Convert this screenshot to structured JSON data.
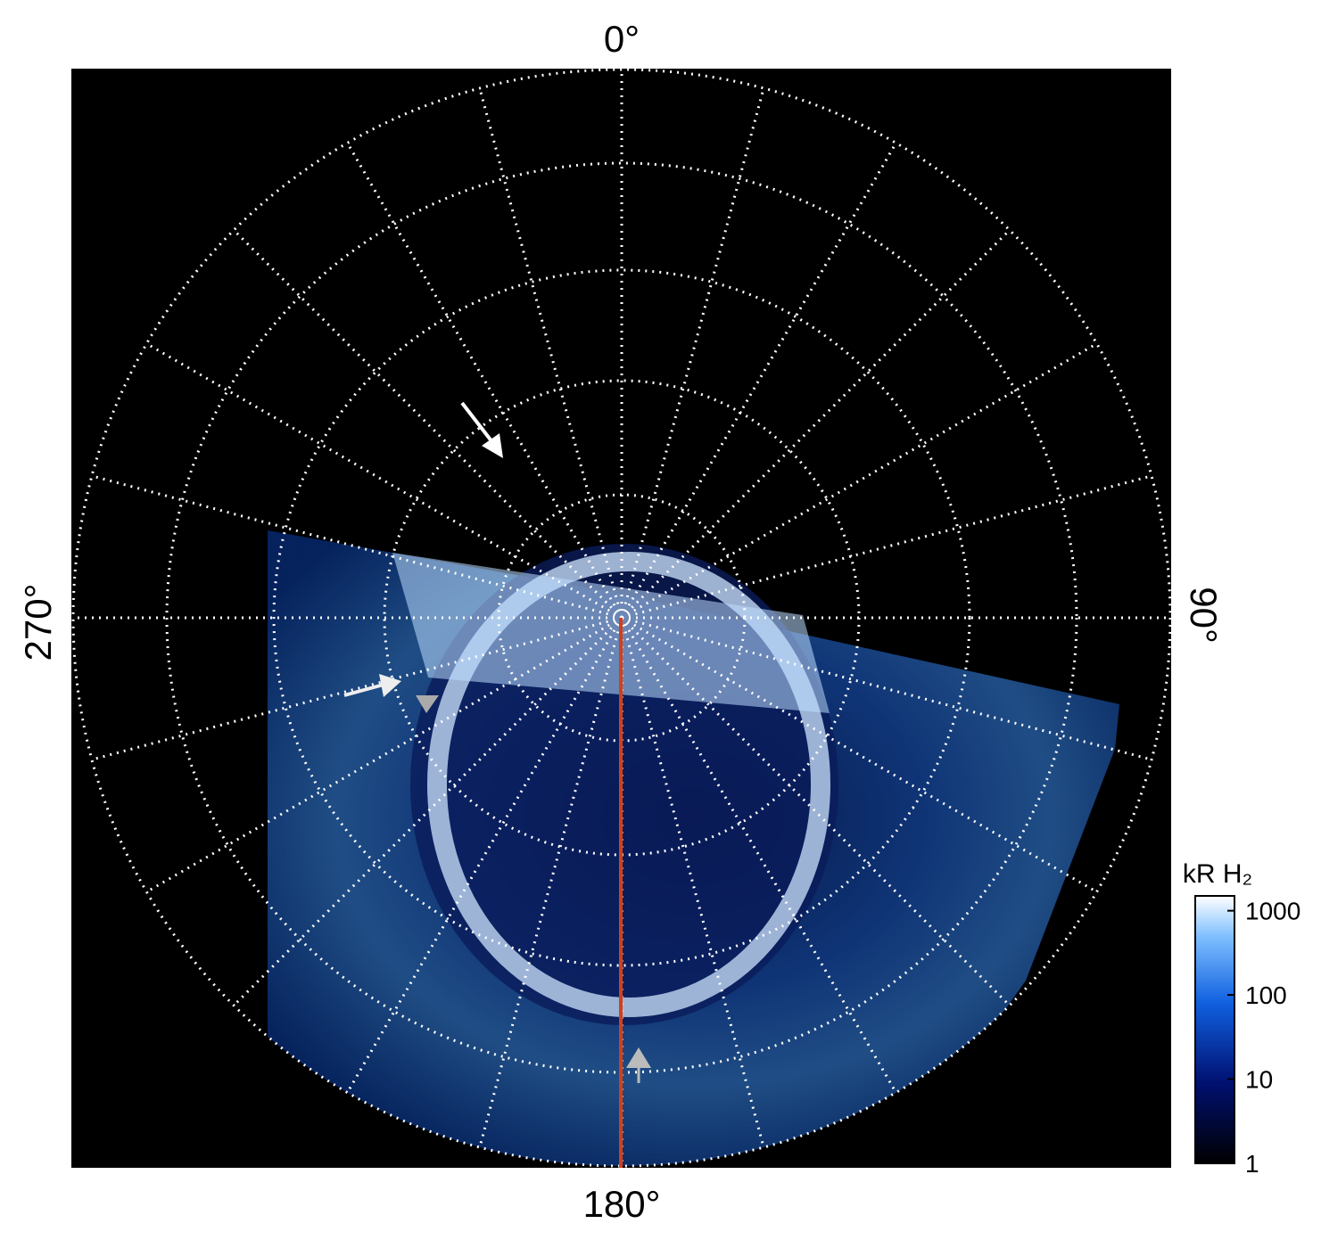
{
  "image": {
    "labels": {
      "top": "0°",
      "right": "90°",
      "bottom": "180°",
      "left": "270°"
    }
  },
  "colorbar": {
    "title": "kR H₂",
    "scale": "log",
    "lim": [
      1,
      1500
    ],
    "ticks": [
      1,
      10,
      100,
      1000
    ]
  }
}
